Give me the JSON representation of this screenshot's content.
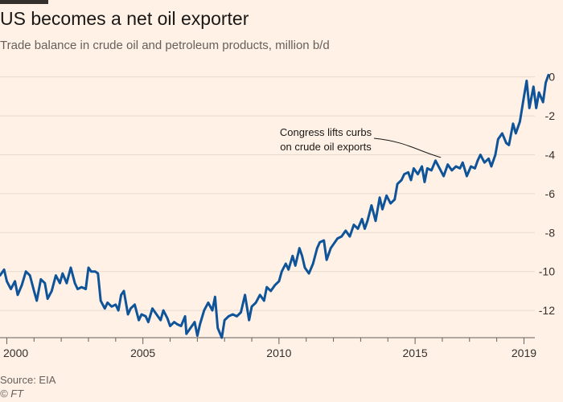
{
  "header": {
    "title": "US becomes a net oil exporter",
    "subtitle": "Trade balance in crude oil and petroleum products, million b/d"
  },
  "footer": {
    "source": "Source: EIA",
    "copyright": "© FT"
  },
  "colors": {
    "background": "#fff1e5",
    "line": "#0f5499",
    "grid": "#e6d9ce",
    "axis_text": "#33302e",
    "annotation": "#1a1817"
  },
  "chart_data": {
    "type": "line",
    "title": "US becomes a net oil exporter",
    "subtitle": "Trade balance in crude oil and petroleum products, million b/d",
    "xlim": [
      1999.75,
      2019.4
    ],
    "ylim": [
      -13.4,
      0.4
    ],
    "y_ticks": [
      0,
      -2,
      -4,
      -6,
      -8,
      -10,
      -12
    ],
    "y_tick_labels": [
      "0",
      "-2",
      "-4",
      "-6",
      "-8",
      "-10",
      "-12"
    ],
    "x_ticks": [
      2000,
      2005,
      2010,
      2015,
      2019
    ],
    "x_tick_labels": [
      "2000",
      "2005",
      "2010",
      "2015",
      "2019"
    ],
    "y_axis_position": "right",
    "grid": true,
    "annotation": {
      "text_lines": [
        "Congress lifts curbs",
        "on crude oil exports"
      ],
      "x": 2015.95,
      "y": -4.3
    },
    "series": [
      {
        "points": [
          [
            1999.75,
            -10.2
          ],
          [
            1999.9,
            -9.9
          ],
          [
            2000.0,
            -10.5
          ],
          [
            2000.15,
            -10.9
          ],
          [
            2000.3,
            -10.5
          ],
          [
            2000.4,
            -11.2
          ],
          [
            2000.55,
            -10.7
          ],
          [
            2000.7,
            -10.0
          ],
          [
            2000.85,
            -10.2
          ],
          [
            2001.0,
            -11.0
          ],
          [
            2001.1,
            -11.5
          ],
          [
            2001.25,
            -10.4
          ],
          [
            2001.4,
            -10.6
          ],
          [
            2001.5,
            -11.4
          ],
          [
            2001.65,
            -11.0
          ],
          [
            2001.8,
            -10.2
          ],
          [
            2001.95,
            -10.6
          ],
          [
            2002.05,
            -10.1
          ],
          [
            2002.2,
            -10.6
          ],
          [
            2002.35,
            -9.8
          ],
          [
            2002.5,
            -10.6
          ],
          [
            2002.6,
            -10.9
          ],
          [
            2002.75,
            -10.8
          ],
          [
            2002.9,
            -10.9
          ],
          [
            2003.0,
            -9.8
          ],
          [
            2003.1,
            -10.0
          ],
          [
            2003.25,
            -10.0
          ],
          [
            2003.35,
            -10.1
          ],
          [
            2003.45,
            -11.5
          ],
          [
            2003.6,
            -11.9
          ],
          [
            2003.7,
            -11.6
          ],
          [
            2003.85,
            -11.8
          ],
          [
            2004.0,
            -11.7
          ],
          [
            2004.1,
            -12.0
          ],
          [
            2004.2,
            -11.2
          ],
          [
            2004.3,
            -11.0
          ],
          [
            2004.45,
            -12.2
          ],
          [
            2004.55,
            -11.9
          ],
          [
            2004.7,
            -11.7
          ],
          [
            2004.85,
            -12.5
          ],
          [
            2004.95,
            -12.2
          ],
          [
            2005.1,
            -12.3
          ],
          [
            2005.2,
            -12.6
          ],
          [
            2005.35,
            -11.9
          ],
          [
            2005.5,
            -12.2
          ],
          [
            2005.65,
            -12.5
          ],
          [
            2005.75,
            -12.0
          ],
          [
            2005.9,
            -12.4
          ],
          [
            2006.0,
            -12.8
          ],
          [
            2006.15,
            -12.6
          ],
          [
            2006.25,
            -12.7
          ],
          [
            2006.4,
            -12.8
          ],
          [
            2006.55,
            -12.3
          ],
          [
            2006.6,
            -13.2
          ],
          [
            2006.75,
            -12.9
          ],
          [
            2006.9,
            -12.6
          ],
          [
            2007.0,
            -13.3
          ],
          [
            2007.1,
            -12.7
          ],
          [
            2007.25,
            -12.0
          ],
          [
            2007.4,
            -11.6
          ],
          [
            2007.55,
            -12.0
          ],
          [
            2007.65,
            -11.3
          ],
          [
            2007.75,
            -12.9
          ],
          [
            2007.9,
            -13.4
          ],
          [
            2008.0,
            -12.5
          ],
          [
            2008.15,
            -12.3
          ],
          [
            2008.3,
            -12.2
          ],
          [
            2008.45,
            -12.3
          ],
          [
            2008.6,
            -12.1
          ],
          [
            2008.75,
            -11.2
          ],
          [
            2008.9,
            -12.5
          ],
          [
            2009.0,
            -11.8
          ],
          [
            2009.15,
            -11.6
          ],
          [
            2009.3,
            -11.2
          ],
          [
            2009.45,
            -11.5
          ],
          [
            2009.55,
            -10.8
          ],
          [
            2009.7,
            -11.0
          ],
          [
            2009.85,
            -10.7
          ],
          [
            2010.0,
            -10.5
          ],
          [
            2010.1,
            -10.0
          ],
          [
            2010.25,
            -9.6
          ],
          [
            2010.35,
            -9.9
          ],
          [
            2010.5,
            -9.2
          ],
          [
            2010.6,
            -9.7
          ],
          [
            2010.75,
            -8.8
          ],
          [
            2010.85,
            -9.2
          ],
          [
            2010.95,
            -9.8
          ],
          [
            2011.1,
            -10.1
          ],
          [
            2011.25,
            -9.6
          ],
          [
            2011.4,
            -8.8
          ],
          [
            2011.5,
            -8.5
          ],
          [
            2011.65,
            -8.4
          ],
          [
            2011.75,
            -9.4
          ],
          [
            2011.9,
            -8.8
          ],
          [
            2012.0,
            -8.6
          ],
          [
            2012.15,
            -8.3
          ],
          [
            2012.3,
            -8.2
          ],
          [
            2012.45,
            -7.9
          ],
          [
            2012.6,
            -8.2
          ],
          [
            2012.75,
            -7.6
          ],
          [
            2012.9,
            -7.8
          ],
          [
            2013.05,
            -7.3
          ],
          [
            2013.15,
            -7.8
          ],
          [
            2013.25,
            -7.4
          ],
          [
            2013.4,
            -6.6
          ],
          [
            2013.55,
            -7.4
          ],
          [
            2013.7,
            -6.2
          ],
          [
            2013.8,
            -6.8
          ],
          [
            2013.95,
            -6.1
          ],
          [
            2014.1,
            -6.5
          ],
          [
            2014.25,
            -6.3
          ],
          [
            2014.35,
            -5.5
          ],
          [
            2014.5,
            -5.3
          ],
          [
            2014.6,
            -5.0
          ],
          [
            2014.75,
            -4.9
          ],
          [
            2014.85,
            -5.3
          ],
          [
            2014.95,
            -4.7
          ],
          [
            2015.1,
            -5.0
          ],
          [
            2015.25,
            -4.6
          ],
          [
            2015.35,
            -5.4
          ],
          [
            2015.45,
            -4.7
          ],
          [
            2015.6,
            -4.8
          ],
          [
            2015.75,
            -4.3
          ],
          [
            2015.9,
            -4.7
          ],
          [
            2016.05,
            -5.1
          ],
          [
            2016.2,
            -4.5
          ],
          [
            2016.35,
            -4.8
          ],
          [
            2016.5,
            -4.6
          ],
          [
            2016.65,
            -4.7
          ],
          [
            2016.75,
            -4.4
          ],
          [
            2016.9,
            -5.1
          ],
          [
            2017.05,
            -4.6
          ],
          [
            2017.2,
            -4.7
          ],
          [
            2017.3,
            -4.3
          ],
          [
            2017.4,
            -4.0
          ],
          [
            2017.55,
            -4.4
          ],
          [
            2017.7,
            -4.2
          ],
          [
            2017.8,
            -4.6
          ],
          [
            2017.95,
            -4.0
          ],
          [
            2018.05,
            -3.2
          ],
          [
            2018.2,
            -2.9
          ],
          [
            2018.35,
            -3.4
          ],
          [
            2018.45,
            -3.5
          ],
          [
            2018.6,
            -2.4
          ],
          [
            2018.7,
            -2.9
          ],
          [
            2018.85,
            -2.3
          ],
          [
            2019.0,
            -1.0
          ],
          [
            2019.1,
            -0.2
          ],
          [
            2019.2,
            -1.6
          ],
          [
            2019.35,
            -0.5
          ],
          [
            2019.45,
            -1.6
          ],
          [
            2019.55,
            -0.8
          ],
          [
            2019.7,
            -1.3
          ],
          [
            2019.8,
            -0.3
          ],
          [
            2019.9,
            0.1
          ]
        ]
      }
    ]
  }
}
